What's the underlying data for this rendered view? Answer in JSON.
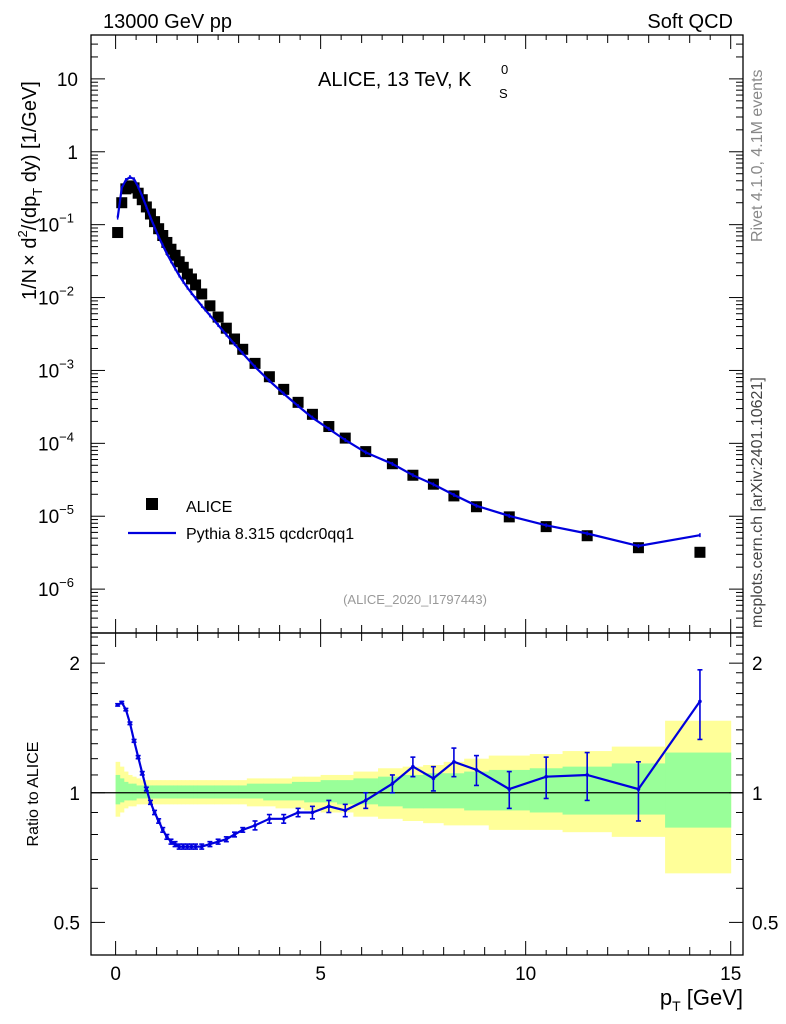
{
  "header": {
    "left": "13000 GeV pp",
    "right": "Soft QCD"
  },
  "side": {
    "rivet": "Rivet 4.1.0,  4.1M events",
    "mcplots": "mcplots.cern.ch [arXiv:2401.10621]"
  },
  "colors": {
    "data": "#000000",
    "mc": "#0000dd",
    "band_inner": "#99ff99",
    "band_outer": "#ffff99",
    "frame": "#000000",
    "analysis_label": "#999999"
  },
  "chart_data": [
    {
      "type": "scatter",
      "panel": "main",
      "title_main": "ALICE, 13 TeV, K",
      "title_sup": "0",
      "title_sub": "S",
      "ylabel": "1/N × d²/(dp_T dy) [1/GeV]",
      "ylabel_parts": [
        "1/N",
        "×",
        " d",
        "2",
        "/(dp",
        "T",
        " dy) [1/GeV]"
      ],
      "yscale": "log",
      "xlim": [
        -0.6,
        15.3
      ],
      "ylim": [
        2.5e-07,
        40
      ],
      "yticks": [
        {
          "v": 10,
          "label": "10"
        },
        {
          "v": 1,
          "label": "1"
        },
        {
          "v": 0.1,
          "mant": "10",
          "exp": "−1"
        },
        {
          "v": 0.01,
          "mant": "10",
          "exp": "−2"
        },
        {
          "v": 0.001,
          "mant": "10",
          "exp": "−3"
        },
        {
          "v": 0.0001,
          "mant": "10",
          "exp": "−4"
        },
        {
          "v": 1e-05,
          "mant": "10",
          "exp": "−5"
        },
        {
          "v": 1e-06,
          "mant": "10",
          "exp": "−6"
        }
      ],
      "legend": {
        "position": "lower-left",
        "entries": [
          {
            "label": "ALICE",
            "marker": "square"
          },
          {
            "label": "Pythia 8.315 qcdcr0qq1",
            "marker": "line"
          }
        ]
      },
      "analysis_id": "(ALICE_2020_I1797443)",
      "series": [
        {
          "name": "ALICE",
          "x": [
            0.05,
            0.15,
            0.25,
            0.35,
            0.45,
            0.55,
            0.65,
            0.75,
            0.85,
            0.95,
            1.05,
            1.15,
            1.25,
            1.35,
            1.45,
            1.55,
            1.65,
            1.75,
            1.85,
            1.95,
            2.1,
            2.3,
            2.5,
            2.7,
            2.9,
            3.1,
            3.4,
            3.75,
            4.1,
            4.45,
            4.8,
            5.2,
            5.6,
            6.1,
            6.75,
            7.25,
            7.75,
            8.25,
            8.8,
            9.6,
            10.5,
            11.5,
            12.75,
            14.25
          ],
          "y": [
            0.078,
            0.2,
            0.31,
            0.34,
            0.32,
            0.27,
            0.22,
            0.175,
            0.14,
            0.11,
            0.088,
            0.071,
            0.057,
            0.046,
            0.038,
            0.031,
            0.026,
            0.021,
            0.018,
            0.0149,
            0.0112,
            0.0077,
            0.0054,
            0.0038,
            0.0027,
            0.00195,
            0.00125,
            0.00082,
            0.00055,
            0.000365,
            0.00025,
            0.00017,
            0.000118,
            7.7e-05,
            5.25e-05,
            3.65e-05,
            2.75e-05,
            1.9e-05,
            1.35e-05,
            9.8e-06,
            7.2e-06,
            5.4e-06,
            3.7e-06,
            3.2e-06
          ],
          "y_display_note": "approximate values read from log axis"
        },
        {
          "name": "Pythia 8.315 qcdcr0qq1",
          "x": [
            0.05,
            0.15,
            0.25,
            0.35,
            0.45,
            0.55,
            0.65,
            0.75,
            0.85,
            0.95,
            1.05,
            1.15,
            1.25,
            1.35,
            1.45,
            1.55,
            1.65,
            1.75,
            1.85,
            1.95,
            2.1,
            2.3,
            2.5,
            2.7,
            2.9,
            3.1,
            3.4,
            3.75,
            4.1,
            4.45,
            4.8,
            5.2,
            5.6,
            6.1,
            6.75,
            7.25,
            7.75,
            8.25,
            8.8,
            9.6,
            10.5,
            11.5,
            12.75,
            14.25
          ],
          "y": [
            0.125,
            0.32,
            0.41,
            0.45,
            0.42,
            0.33,
            0.245,
            0.175,
            0.125,
            0.092,
            0.068,
            0.052,
            0.04,
            0.0315,
            0.025,
            0.0201,
            0.0165,
            0.0137,
            0.0115,
            0.0098,
            0.0077,
            0.0057,
            0.0042,
            0.0031,
            0.0023,
            0.00172,
            0.00112,
            0.00072,
            0.00048,
            0.000325,
            0.000225,
            0.000158,
            0.000111,
            7.5e-05,
            5.22e-05,
            3.65e-05,
            2.73e-05,
            1.96e-05,
            1.39e-05,
            1.01e-05,
            7.5e-06,
            5.8e-06,
            3.9e-06,
            5.5e-06
          ]
        }
      ]
    },
    {
      "type": "line",
      "panel": "ratio",
      "ylabel": "Ratio to ALICE",
      "xlabel": "p_T [GeV]",
      "xlabel_main": "p",
      "xlabel_sub": "T",
      "xlabel_unit": " [GeV]",
      "xlim": [
        -0.6,
        15.3
      ],
      "ylim": [
        0.42,
        2.35
      ],
      "xticks": [
        0,
        5,
        10,
        15
      ],
      "yticks": [
        {
          "v": 2,
          "label": "2"
        },
        {
          "v": 1,
          "label": "1"
        },
        {
          "v": 0.5,
          "label": "0.5"
        }
      ],
      "reference_line": 1,
      "bands": {
        "edges": [
          0.0,
          0.1,
          0.2,
          0.3,
          0.4,
          0.5,
          0.6,
          0.7,
          0.8,
          0.9,
          1.0,
          1.1,
          1.2,
          1.3,
          1.4,
          1.5,
          1.6,
          1.7,
          1.8,
          1.9,
          2.0,
          2.2,
          2.4,
          2.6,
          2.8,
          3.0,
          3.2,
          3.6,
          3.9,
          4.3,
          4.6,
          5.0,
          5.4,
          5.8,
          6.4,
          7.0,
          7.5,
          8.0,
          8.5,
          9.1,
          10.1,
          10.9,
          12.1,
          13.4,
          15.0
        ],
        "outer_lo": [
          0.88,
          0.9,
          0.92,
          0.93,
          0.93,
          0.94,
          0.94,
          0.94,
          0.94,
          0.94,
          0.94,
          0.94,
          0.94,
          0.94,
          0.94,
          0.94,
          0.94,
          0.94,
          0.94,
          0.94,
          0.94,
          0.94,
          0.94,
          0.94,
          0.94,
          0.94,
          0.93,
          0.93,
          0.92,
          0.92,
          0.91,
          0.9,
          0.9,
          0.88,
          0.87,
          0.86,
          0.85,
          0.84,
          0.84,
          0.82,
          0.82,
          0.81,
          0.79,
          0.65
        ],
        "outer_hi": [
          1.18,
          1.15,
          1.12,
          1.1,
          1.09,
          1.08,
          1.07,
          1.07,
          1.07,
          1.07,
          1.07,
          1.07,
          1.07,
          1.07,
          1.07,
          1.07,
          1.07,
          1.07,
          1.07,
          1.07,
          1.07,
          1.07,
          1.07,
          1.07,
          1.07,
          1.07,
          1.08,
          1.08,
          1.08,
          1.09,
          1.09,
          1.1,
          1.1,
          1.12,
          1.14,
          1.15,
          1.16,
          1.18,
          1.2,
          1.22,
          1.23,
          1.25,
          1.28,
          1.47
        ],
        "inner_lo": [
          0.94,
          0.95,
          0.96,
          0.96,
          0.96,
          0.97,
          0.97,
          0.97,
          0.97,
          0.97,
          0.97,
          0.97,
          0.97,
          0.97,
          0.97,
          0.97,
          0.97,
          0.97,
          0.97,
          0.97,
          0.97,
          0.97,
          0.97,
          0.97,
          0.97,
          0.97,
          0.97,
          0.96,
          0.96,
          0.96,
          0.95,
          0.95,
          0.94,
          0.94,
          0.93,
          0.92,
          0.92,
          0.92,
          0.91,
          0.91,
          0.9,
          0.89,
          0.89,
          0.83
        ],
        "inner_hi": [
          1.1,
          1.08,
          1.06,
          1.05,
          1.05,
          1.04,
          1.04,
          1.04,
          1.04,
          1.04,
          1.04,
          1.04,
          1.04,
          1.04,
          1.04,
          1.04,
          1.04,
          1.04,
          1.04,
          1.04,
          1.04,
          1.04,
          1.04,
          1.04,
          1.04,
          1.04,
          1.05,
          1.05,
          1.05,
          1.06,
          1.06,
          1.07,
          1.07,
          1.08,
          1.09,
          1.1,
          1.11,
          1.11,
          1.12,
          1.13,
          1.14,
          1.15,
          1.17,
          1.24
        ]
      },
      "series": [
        {
          "name": "Pythia 8.315 qcdcr0qq1 / ALICE",
          "x": [
            0.05,
            0.15,
            0.25,
            0.35,
            0.45,
            0.55,
            0.65,
            0.75,
            0.85,
            0.95,
            1.05,
            1.15,
            1.25,
            1.35,
            1.45,
            1.55,
            1.65,
            1.75,
            1.85,
            1.95,
            2.1,
            2.3,
            2.5,
            2.7,
            2.9,
            3.1,
            3.4,
            3.75,
            4.1,
            4.45,
            4.8,
            5.2,
            5.6,
            6.1,
            6.75,
            7.25,
            7.75,
            8.25,
            8.8,
            9.6,
            10.5,
            11.5,
            12.75,
            14.25
          ],
          "y": [
            1.6,
            1.62,
            1.56,
            1.45,
            1.32,
            1.21,
            1.11,
            1.02,
            0.95,
            0.9,
            0.86,
            0.82,
            0.79,
            0.77,
            0.76,
            0.75,
            0.75,
            0.75,
            0.75,
            0.75,
            0.75,
            0.76,
            0.77,
            0.78,
            0.8,
            0.82,
            0.84,
            0.87,
            0.87,
            0.9,
            0.9,
            0.93,
            0.91,
            0.96,
            1.05,
            1.15,
            1.08,
            1.18,
            1.13,
            1.02,
            1.09,
            1.1,
            1.02,
            1.63
          ],
          "err": [
            0.01,
            0.01,
            0.01,
            0.01,
            0.01,
            0.01,
            0.01,
            0.01,
            0.01,
            0.01,
            0.01,
            0.01,
            0.01,
            0.01,
            0.01,
            0.01,
            0.01,
            0.01,
            0.01,
            0.01,
            0.01,
            0.01,
            0.01,
            0.01,
            0.01,
            0.01,
            0.02,
            0.02,
            0.02,
            0.02,
            0.03,
            0.03,
            0.03,
            0.04,
            0.05,
            0.06,
            0.07,
            0.09,
            0.09,
            0.1,
            0.12,
            0.14,
            0.16,
            0.3
          ]
        }
      ]
    }
  ]
}
